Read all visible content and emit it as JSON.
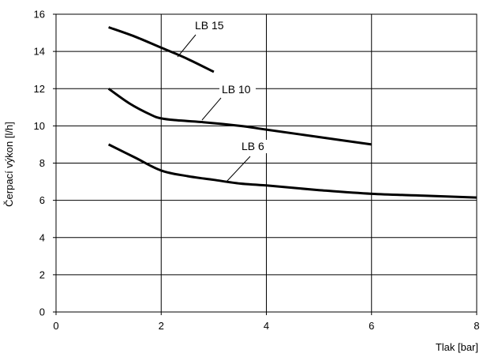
{
  "chart_data": {
    "type": "line",
    "title": "",
    "xlabel": "Tlak [bar]",
    "ylabel": "Čerpací výkon [l/h]",
    "xlim": [
      0,
      8
    ],
    "ylim": [
      0,
      16
    ],
    "xticks": [
      0,
      2,
      4,
      6,
      8
    ],
    "yticks": [
      0,
      2,
      4,
      6,
      8,
      10,
      12,
      14,
      16
    ],
    "grid": true,
    "legend": "none",
    "line_color": "#000000",
    "series": [
      {
        "name": "LB 15",
        "x": [
          1.0,
          1.5,
          2.0,
          2.5,
          3.0
        ],
        "y": [
          15.3,
          14.8,
          14.2,
          13.6,
          12.9
        ]
      },
      {
        "name": "LB 10",
        "x": [
          1.0,
          1.4,
          1.8,
          2.0,
          2.3,
          2.8,
          3.5,
          4.0,
          5.0,
          6.0
        ],
        "y": [
          12.0,
          11.2,
          10.6,
          10.4,
          10.3,
          10.2,
          10.0,
          9.8,
          9.4,
          9.0
        ]
      },
      {
        "name": "LB 6",
        "x": [
          1.0,
          1.5,
          2.0,
          2.5,
          3.0,
          3.5,
          4.0,
          5.0,
          6.0,
          7.0,
          8.0
        ],
        "y": [
          9.0,
          8.3,
          7.6,
          7.3,
          7.1,
          6.9,
          6.8,
          6.55,
          6.35,
          6.25,
          6.15
        ]
      }
    ]
  }
}
